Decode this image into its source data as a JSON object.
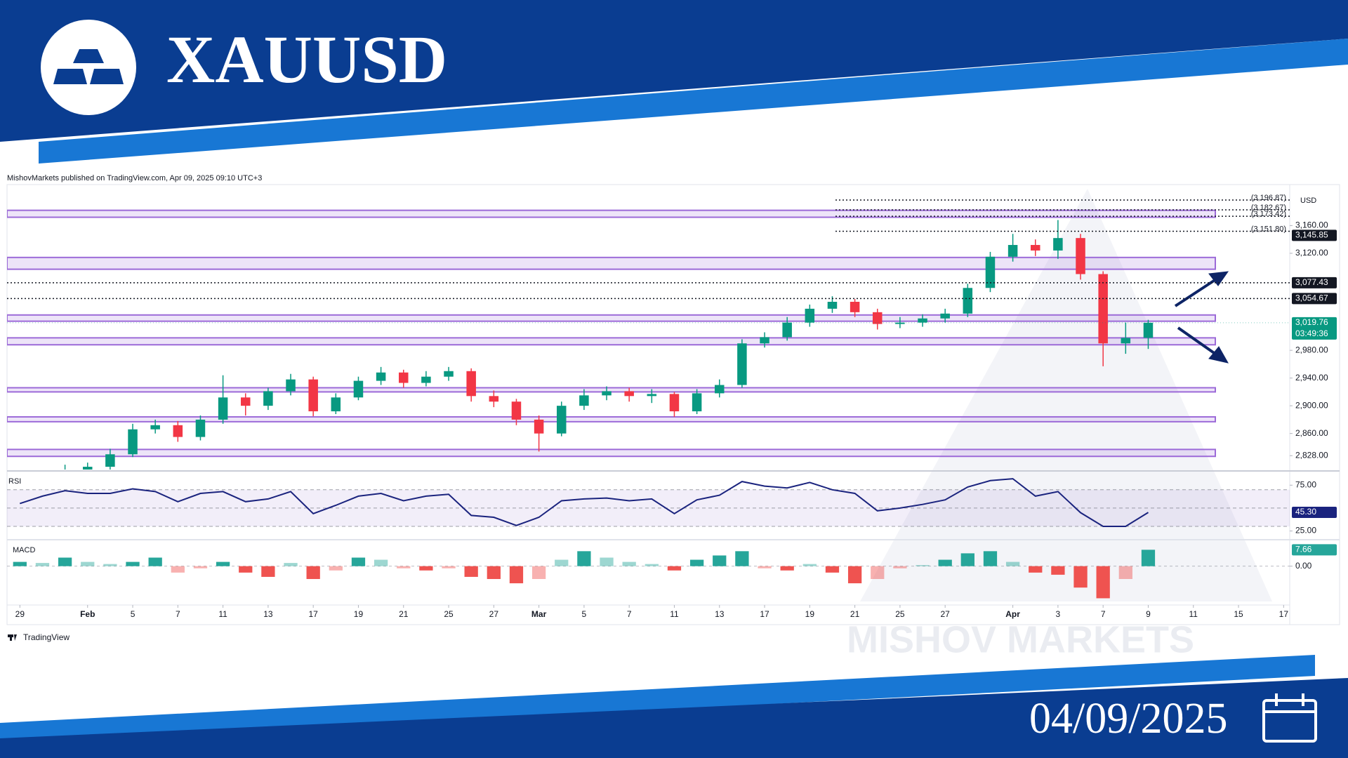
{
  "header": {
    "symbol": "XAUUSD",
    "date": "04/09/2025"
  },
  "attribution": "MishovMarkets published on TradingView.com, Apr 09, 2025 09:10 UTC+3",
  "watermark": "MISHOV  MARKETS",
  "branding": "TradingView",
  "chart_data": [
    {
      "type": "candlestick",
      "ylabel": "USD",
      "colors": {
        "up": "#089981",
        "down": "#f23645"
      },
      "x": [
        2,
        3,
        4,
        5,
        6,
        7,
        8,
        9,
        10,
        11,
        12,
        13,
        14,
        15,
        16,
        17,
        18,
        19,
        20,
        21,
        22,
        23,
        24,
        25,
        26,
        27,
        28,
        29,
        30,
        31,
        32,
        33,
        34,
        35,
        36,
        37,
        38,
        39,
        40,
        41,
        42,
        43,
        44,
        45,
        46,
        47,
        48,
        49,
        50
      ],
      "open": [
        2800,
        2808,
        2812,
        2830,
        2866,
        2872,
        2855,
        2880,
        2912,
        2900,
        2921,
        2938,
        2892,
        2912,
        2936,
        2948,
        2933,
        2942,
        2950,
        2914,
        2906,
        2880,
        2860,
        2900,
        2915,
        2921,
        2914,
        2917,
        2892,
        2918,
        2930,
        2990,
        2999,
        3020,
        3040,
        3050,
        3035,
        3018,
        3020,
        3026,
        3033,
        3070,
        3115,
        3132,
        3124,
        3142,
        3090,
        2990,
        2998
      ],
      "high": [
        2815,
        2818,
        2838,
        2874,
        2880,
        2878,
        2886,
        2944,
        2918,
        2926,
        2946,
        2942,
        2918,
        2942,
        2956,
        2952,
        2950,
        2956,
        2954,
        2922,
        2910,
        2886,
        2906,
        2924,
        2928,
        2926,
        2924,
        2920,
        2924,
        2938,
        2996,
        3006,
        3028,
        3046,
        3058,
        3054,
        3040,
        3028,
        3032,
        3040,
        3076,
        3122,
        3148,
        3140,
        3168,
        3148,
        3094,
        3020,
        3024
      ],
      "low": [
        2795,
        2802,
        2808,
        2826,
        2860,
        2848,
        2850,
        2874,
        2886,
        2894,
        2915,
        2885,
        2888,
        2908,
        2930,
        2926,
        2928,
        2936,
        2906,
        2898,
        2872,
        2834,
        2856,
        2894,
        2908,
        2906,
        2904,
        2884,
        2888,
        2912,
        2926,
        2984,
        2994,
        3014,
        3034,
        3028,
        3010,
        3012,
        3014,
        3020,
        3028,
        3064,
        3108,
        3116,
        3112,
        3082,
        2957,
        2975,
        2982
      ],
      "close": [
        2808,
        2812,
        2830,
        2866,
        2872,
        2855,
        2880,
        2912,
        2900,
        2921,
        2938,
        2892,
        2912,
        2936,
        2948,
        2933,
        2942,
        2950,
        2914,
        2906,
        2880,
        2860,
        2900,
        2915,
        2921,
        2914,
        2917,
        2892,
        2918,
        2930,
        2990,
        2999,
        3020,
        3040,
        3050,
        3035,
        3018,
        3020,
        3026,
        3033,
        3070,
        3115,
        3132,
        3124,
        3142,
        3090,
        2990,
        2998,
        3019.76
      ],
      "xlim": [
        -0.57,
        56.27
      ],
      "ylim": [
        2808,
        3210
      ],
      "yticks": [
        {
          "value": 3160,
          "label": "3,160.00"
        },
        {
          "value": 3120,
          "label": "3,120.00"
        },
        {
          "value": 2980,
          "label": "2,980.00"
        },
        {
          "value": 2940,
          "label": "2,940.00"
        },
        {
          "value": 2900,
          "label": "2,900.00"
        },
        {
          "value": 2860,
          "label": "2,860.00"
        },
        {
          "value": 2828,
          "label": "2,828.00"
        }
      ],
      "zones_color": "#9c6ad8",
      "zones": [
        [
          3172,
          3182
        ],
        [
          3097,
          3114
        ],
        [
          3022,
          3031
        ],
        [
          2988,
          2998
        ],
        [
          2920,
          2926
        ],
        [
          2877,
          2884
        ],
        [
          2827,
          2837
        ]
      ],
      "dotted_levels": [
        {
          "value": 3196.87,
          "label": "(3,196.87)"
        },
        {
          "value": 3182.67,
          "label": "(3,182.67)"
        },
        {
          "value": 3173.42,
          "label": "(3,173.42)"
        },
        {
          "value": 3151.8,
          "label": "(3,151.80)"
        }
      ],
      "price_labels": [
        {
          "value": 3145.85,
          "label": "3,145.85",
          "color": "#131722",
          "line": false
        },
        {
          "value": 3077.43,
          "label": "3,077.43",
          "color": "#131722",
          "line": true
        },
        {
          "value": 3054.67,
          "label": "3,054.67",
          "color": "#131722",
          "line": true
        },
        {
          "value": 3019.76,
          "label": "3,019.76",
          "color": "#089981",
          "line": false,
          "countdown": "03:49:36"
        }
      ]
    },
    {
      "type": "line",
      "title": "RSI",
      "color": "#1a237e",
      "x": [
        0,
        1,
        2,
        3,
        4,
        5,
        6,
        7,
        8,
        9,
        10,
        11,
        12,
        13,
        14,
        15,
        16,
        17,
        18,
        19,
        20,
        21,
        22,
        23,
        24,
        25,
        26,
        27,
        28,
        29,
        30,
        31,
        32,
        33,
        34,
        35,
        36,
        37,
        38,
        39,
        40,
        41,
        42,
        43,
        44,
        45,
        46,
        47,
        48,
        49,
        50
      ],
      "values": [
        55,
        63,
        69,
        66,
        66,
        71,
        68,
        57,
        66,
        68,
        57,
        60,
        68,
        44,
        53,
        63,
        66,
        58,
        63,
        65,
        42,
        40,
        31,
        40,
        58,
        60,
        61,
        58,
        60,
        44,
        59,
        64,
        79,
        74,
        72,
        78,
        70,
        66,
        47,
        50,
        54,
        59,
        73,
        80,
        82,
        63,
        68,
        45,
        30,
        30,
        45.3
      ],
      "last_value_label": "45.30",
      "band": [
        30,
        70
      ],
      "guides": [
        70,
        50,
        30
      ],
      "xlim": [
        -0.57,
        56.27
      ],
      "ylim": [
        17,
        89
      ],
      "yticks": [
        {
          "value": 75,
          "label": "75.00"
        },
        {
          "value": 25,
          "label": "25.00"
        }
      ]
    },
    {
      "type": "bar",
      "title": "MACD",
      "colors": {
        "positive": "#26a69a",
        "negative": "#ef5350"
      },
      "x": [
        0,
        1,
        2,
        3,
        4,
        5,
        6,
        7,
        8,
        9,
        10,
        11,
        12,
        13,
        14,
        15,
        16,
        17,
        18,
        19,
        20,
        21,
        22,
        23,
        24,
        25,
        26,
        27,
        28,
        29,
        30,
        31,
        32,
        33,
        34,
        35,
        36,
        37,
        38,
        39,
        40,
        41,
        42,
        43,
        44,
        45,
        46,
        47,
        48,
        49,
        50
      ],
      "values": [
        2,
        1.5,
        4,
        2,
        1,
        2,
        4,
        -3,
        -1,
        2,
        -3,
        -5,
        1.5,
        -6,
        -2,
        4,
        3,
        -1,
        -2,
        -1,
        -5,
        -6,
        -8,
        -6,
        3,
        7,
        4,
        2,
        1,
        -2,
        3,
        5,
        7,
        -1,
        -2,
        1,
        -3,
        -8,
        -6,
        -1,
        0.5,
        3,
        6,
        7,
        2,
        -3,
        -4,
        -10,
        -15,
        -6,
        7.66
      ],
      "last_value_label": "7.66",
      "xlim": [
        -0.57,
        56.27
      ],
      "ylim": [
        -16.5,
        11.7
      ],
      "yticks": [
        {
          "value": 0,
          "label": "0.00"
        }
      ],
      "xticks": [
        {
          "value": 0,
          "label": "29"
        },
        {
          "value": 3,
          "label": "Feb"
        },
        {
          "value": 5,
          "label": "5"
        },
        {
          "value": 7,
          "label": "7"
        },
        {
          "value": 9,
          "label": "11"
        },
        {
          "value": 11,
          "label": "13"
        },
        {
          "value": 13,
          "label": "17"
        },
        {
          "value": 15,
          "label": "19"
        },
        {
          "value": 17,
          "label": "21"
        },
        {
          "value": 19,
          "label": "25"
        },
        {
          "value": 21,
          "label": "27"
        },
        {
          "value": 23,
          "label": "Mar"
        },
        {
          "value": 25,
          "label": "5"
        },
        {
          "value": 27,
          "label": "7"
        },
        {
          "value": 29,
          "label": "11"
        },
        {
          "value": 31,
          "label": "13"
        },
        {
          "value": 33,
          "label": "17"
        },
        {
          "value": 35,
          "label": "19"
        },
        {
          "value": 37,
          "label": "21"
        },
        {
          "value": 39,
          "label": "25"
        },
        {
          "value": 41,
          "label": "27"
        },
        {
          "value": 44,
          "label": "Apr"
        },
        {
          "value": 46,
          "label": "3"
        },
        {
          "value": 48,
          "label": "7"
        },
        {
          "value": 50,
          "label": "9"
        },
        {
          "value": 52,
          "label": "11"
        },
        {
          "value": 54,
          "label": "15"
        },
        {
          "value": 56,
          "label": "17"
        }
      ]
    }
  ]
}
